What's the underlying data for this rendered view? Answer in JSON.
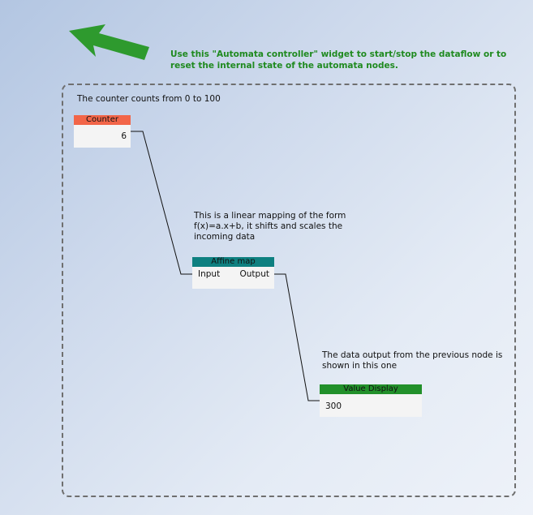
{
  "hint": {
    "text": "Use this \"Automata controller\" widget to start/stop the dataflow or to reset the internal state of the automata nodes."
  },
  "notes": {
    "counter": "The counter counts from 0 to 100",
    "affine": "This is a linear mapping of the form f(x)=a.x+b, it shifts and scales the incoming data",
    "display": "The data output from the previous node is shown in this one"
  },
  "nodes": {
    "counter": {
      "title": "Counter",
      "value": "6"
    },
    "affine": {
      "title": "Affine map",
      "input_label": "Input",
      "output_label": "Output"
    },
    "display": {
      "title": "Value Display",
      "value": "300"
    }
  },
  "colors": {
    "counter_header": "#f26548",
    "affine_header": "#0e8080",
    "display_header": "#22902a",
    "hint_text": "#1f8a1f",
    "arrow": "#2e9a2e"
  }
}
